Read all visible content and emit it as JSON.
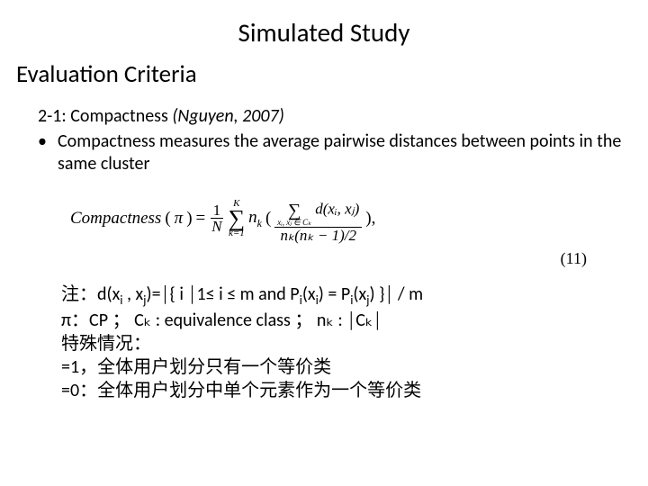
{
  "colors": {
    "background": "#ffffff",
    "text": "#000000"
  },
  "title": "Simulated Study",
  "subtitle": "Evaluation Criteria",
  "section": {
    "prefix": "2-1: Compactness ",
    "citation": "(Nguyen, 2007)"
  },
  "bullet": "Compactness measures the average pairwise distances between points in the same cluster",
  "formula": {
    "lhs": "Compactness",
    "arg": "π",
    "eq": "=",
    "frac1_num": "1",
    "frac1_den": "N",
    "sum1_top": "K",
    "sum1_bot": "k=1",
    "nk": "n",
    "nk_sub": "k",
    "leftparen": "(",
    "frac2_num_sum_sub": "xᵢ, xⱼ ∈ Cₖ",
    "frac2_num_d": " d(xᵢ, xⱼ)",
    "frac2_den": "nₖ(nₖ − 1)/2",
    "rightparen": "),",
    "eqnum": "(11)"
  },
  "notes": {
    "line1_pre": "注：d(x",
    "line1_i": "i",
    "line1_mid1": " , x",
    "line1_j": "j",
    "line1_mid2": ")=│{ i │1≤ i ≤ m and P",
    "line1_i2": "i",
    "line1_mid3": "(x",
    "line1_i3": "i",
    "line1_mid4": ") = P",
    "line1_i4": "i",
    "line1_mid5": "(x",
    "line1_j2": "j",
    "line1_end": ") }│ / m",
    "line2": "π：CP ； Cₖ : equivalence class ； nₖ : │Cₖ│",
    "line3": "特殊情况：",
    "line4": "=1，全体用户划分只有一个等价类",
    "line5": "=0：全体用户划分中单个元素作为一个等价类"
  }
}
